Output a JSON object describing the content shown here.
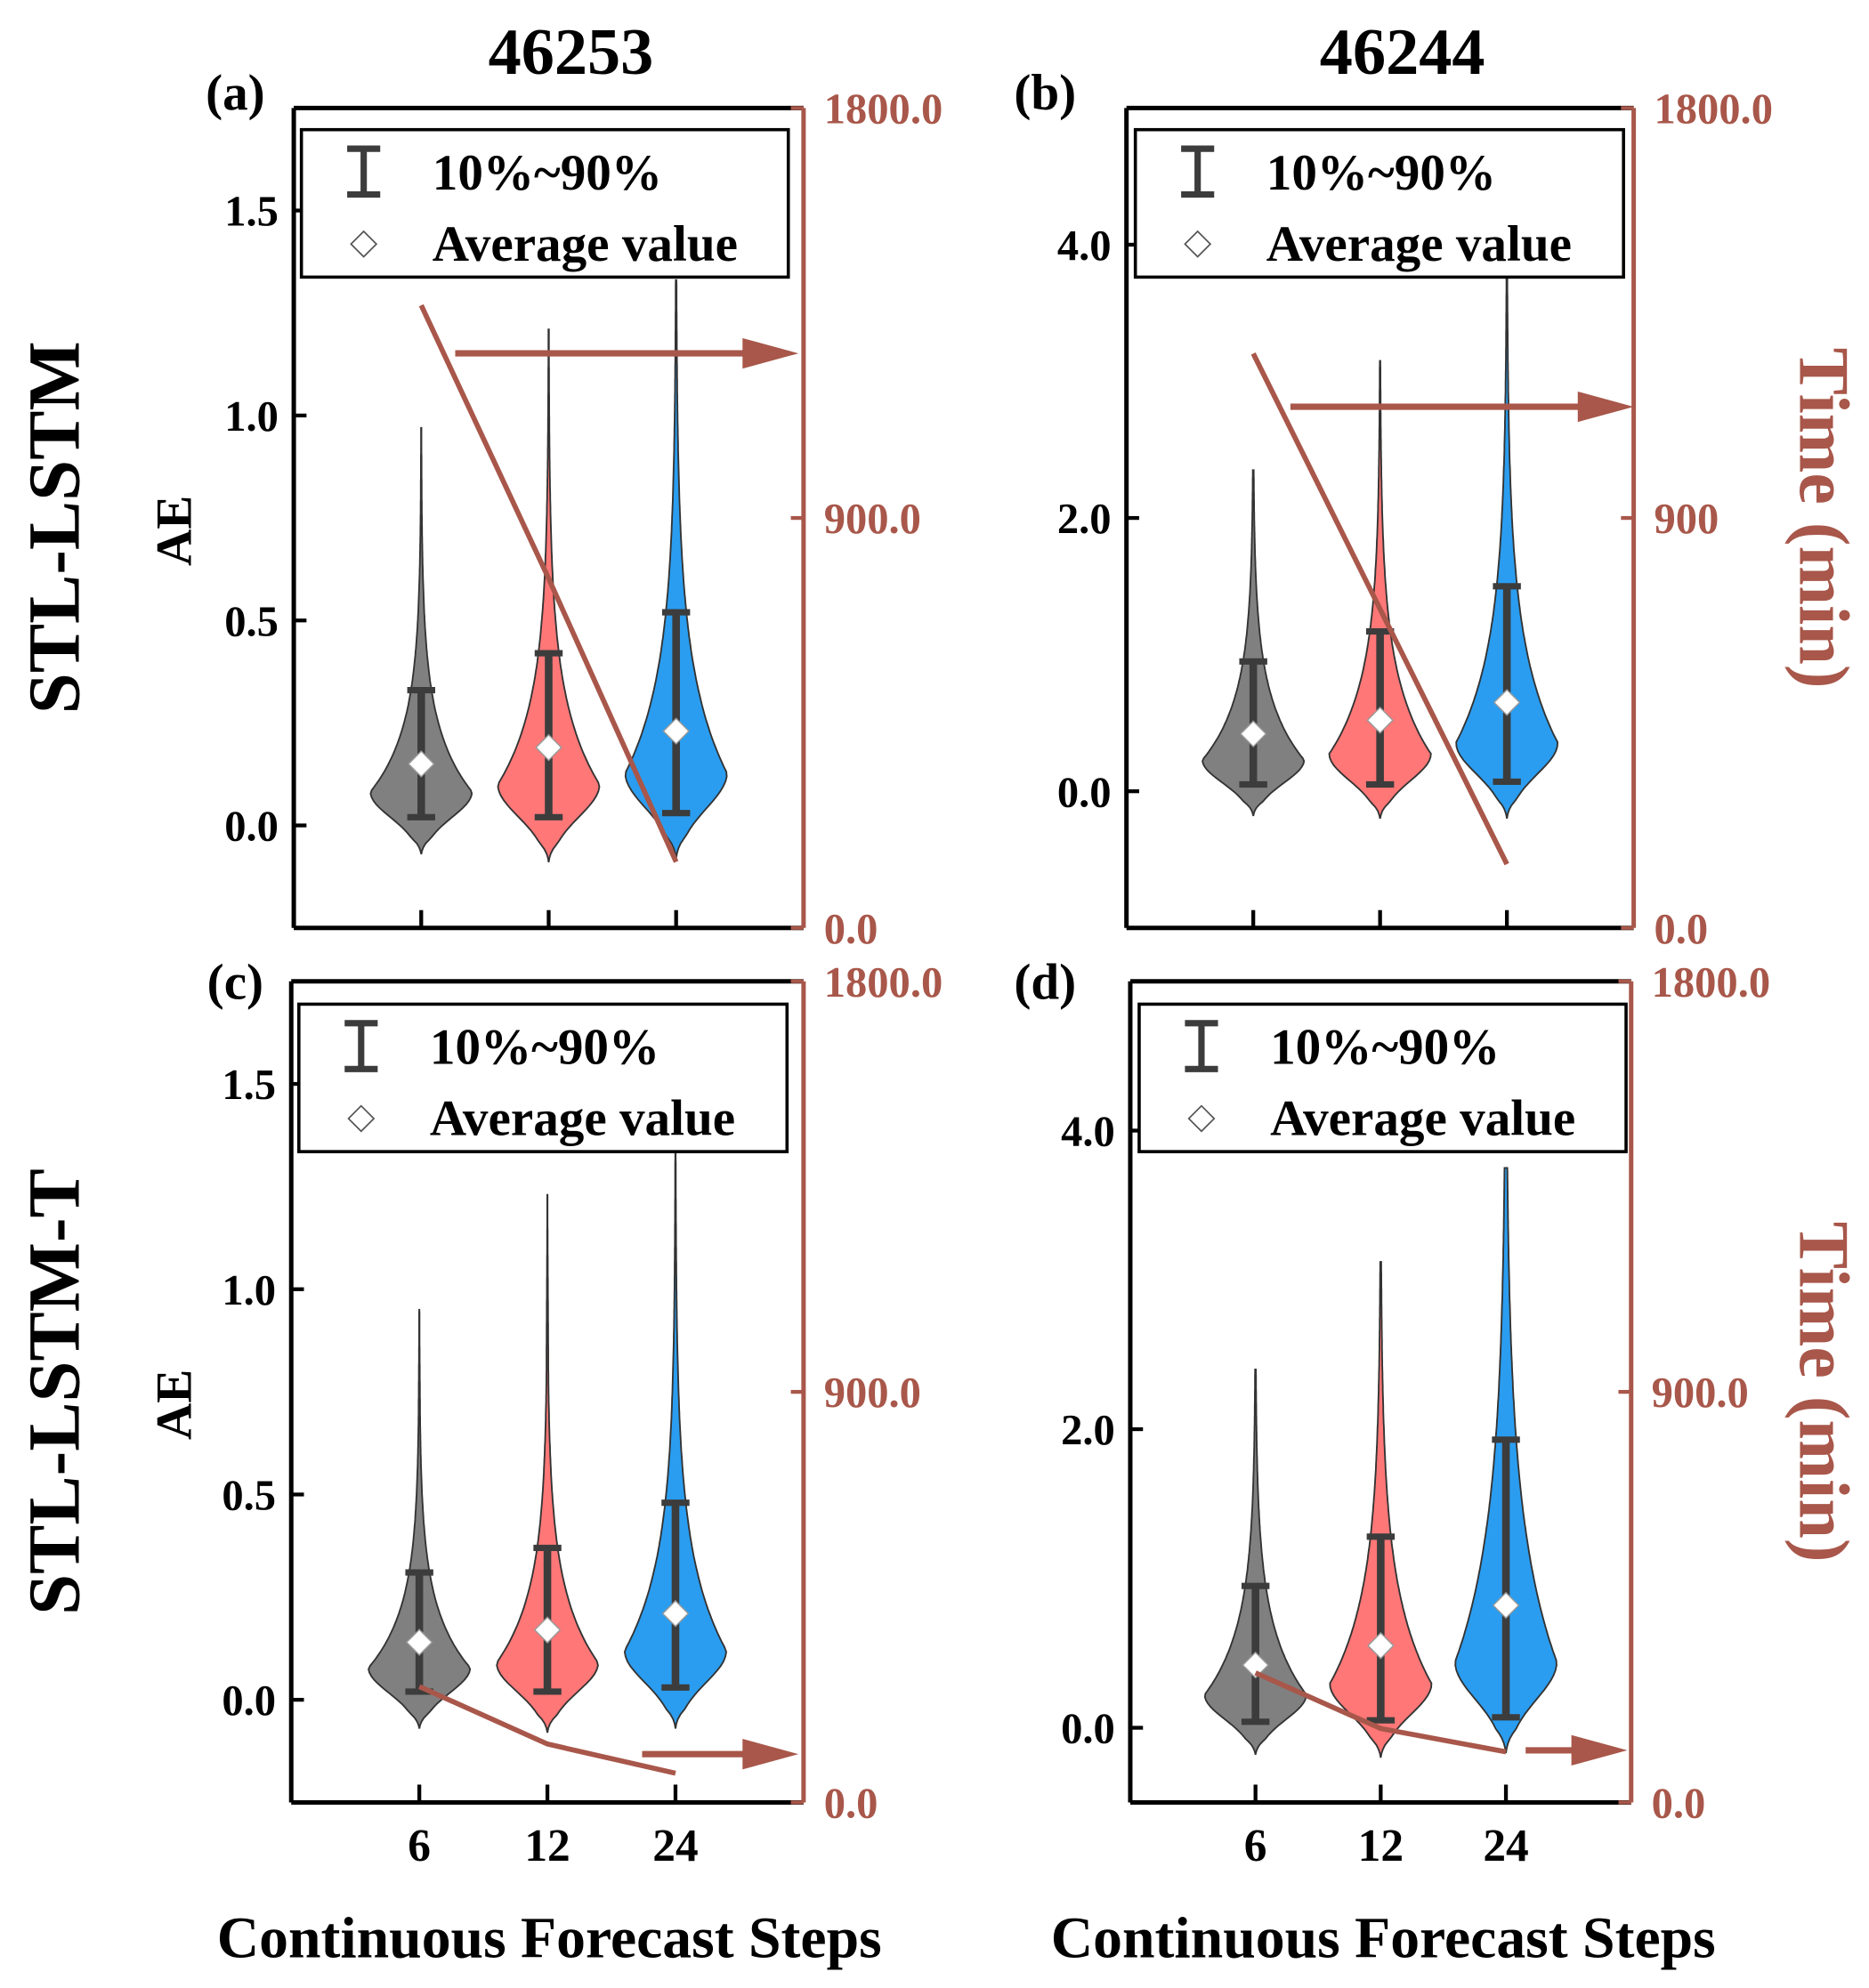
{
  "colors": {
    "gray": "#808080",
    "red": "#FF7777",
    "blue": "#2A9DF0",
    "time": "#A8574A",
    "bar": "#3C3C3C"
  },
  "columns": [
    {
      "title": "46253"
    },
    {
      "title": "46244"
    }
  ],
  "rows": [
    {
      "label": "STL-LSTM"
    },
    {
      "label": "STL-LSTM-T"
    }
  ],
  "legend": {
    "range_label": "10%~90%",
    "mean_label": "Average value"
  },
  "chart_data": [
    {
      "type": "violin",
      "panel": "(a)",
      "ylabel": "AE",
      "xlabel": "",
      "y2label": "",
      "ylim": [
        -0.25,
        1.75
      ],
      "yticks": [
        "0.0",
        "0.5",
        "1.0",
        "1.5"
      ],
      "ytick_values": [
        0,
        0.5,
        1.0,
        1.5
      ],
      "y2lim": [
        0,
        1800
      ],
      "y2ticks": [
        "0.0",
        "900.0",
        "1800.0"
      ],
      "y2tick_values": [
        0,
        900,
        1800
      ],
      "categories": [
        "6",
        "12",
        "24"
      ],
      "show_xtick_labels": false,
      "violins": [
        {
          "p10": 0.02,
          "p90": 0.33,
          "mean": 0.15,
          "min": -0.07,
          "max": 0.97
        },
        {
          "p10": 0.02,
          "p90": 0.42,
          "mean": 0.19,
          "min": -0.09,
          "max": 1.21
        },
        {
          "p10": 0.03,
          "p90": 0.52,
          "mean": 0.23,
          "min": -0.08,
          "max": 1.33
        }
      ],
      "time_series": {
        "name": "Time (min)",
        "values": [
          1367,
          767,
          145
        ]
      }
    },
    {
      "type": "violin",
      "panel": "(b)",
      "ylabel": "",
      "xlabel": "",
      "y2label": "Time (min)",
      "ylim": [
        -1,
        5
      ],
      "yticks": [
        "0.0",
        "2.0",
        "4.0"
      ],
      "ytick_values": [
        0,
        2,
        4
      ],
      "y2lim": [
        0,
        1800
      ],
      "y2ticks": [
        "0.0",
        "900",
        "1800.0"
      ],
      "y2tick_values": [
        0,
        900,
        1800
      ],
      "categories": [
        "6",
        "12",
        "24"
      ],
      "show_xtick_labels": false,
      "violins": [
        {
          "p10": 0.05,
          "p90": 0.95,
          "mean": 0.42,
          "min": -0.18,
          "max": 2.35
        },
        {
          "p10": 0.05,
          "p90": 1.17,
          "mean": 0.52,
          "min": -0.2,
          "max": 3.15
        },
        {
          "p10": 0.07,
          "p90": 1.5,
          "mean": 0.65,
          "min": -0.2,
          "max": 3.75
        }
      ],
      "time_series": {
        "name": "Time (min)",
        "values": [
          1261,
          700,
          140
        ]
      }
    },
    {
      "type": "violin",
      "panel": "(c)",
      "ylabel": "AE",
      "xlabel": "Continuous Forecast Steps",
      "y2label": "",
      "ylim": [
        -0.25,
        1.75
      ],
      "yticks": [
        "0.0",
        "0.5",
        "1.0",
        "1.5"
      ],
      "ytick_values": [
        0,
        0.5,
        1.0,
        1.5
      ],
      "y2lim": [
        0,
        1800
      ],
      "y2ticks": [
        "0.0",
        "900.0",
        "1800.0"
      ],
      "y2tick_values": [
        0,
        900,
        1800
      ],
      "categories": [
        "6",
        "12",
        "24"
      ],
      "show_xtick_labels": true,
      "violins": [
        {
          "p10": 0.02,
          "p90": 0.31,
          "mean": 0.14,
          "min": -0.07,
          "max": 0.95
        },
        {
          "p10": 0.02,
          "p90": 0.37,
          "mean": 0.17,
          "min": -0.08,
          "max": 1.23
        },
        {
          "p10": 0.03,
          "p90": 0.48,
          "mean": 0.21,
          "min": -0.07,
          "max": 1.33
        }
      ],
      "time_series": {
        "name": "Time (min)",
        "values": [
          254,
          128,
          64
        ]
      }
    },
    {
      "type": "violin",
      "panel": "(d)",
      "ylabel": "",
      "xlabel": "Continuous Forecast Steps",
      "y2label": "Time (min)",
      "ylim": [
        -0.5,
        5
      ],
      "yticks": [
        "0.0",
        "2.0",
        "4.0"
      ],
      "ytick_values": [
        0,
        2,
        4
      ],
      "y2lim": [
        0,
        1800
      ],
      "y2ticks": [
        "0.0",
        "900.0",
        "1800.0"
      ],
      "y2tick_values": [
        0,
        900,
        1800
      ],
      "categories": [
        "6",
        "12",
        "24"
      ],
      "show_xtick_labels": true,
      "violins": [
        {
          "p10": 0.04,
          "p90": 0.95,
          "mean": 0.42,
          "min": -0.18,
          "max": 2.4
        },
        {
          "p10": 0.05,
          "p90": 1.28,
          "mean": 0.55,
          "min": -0.2,
          "max": 3.12
        },
        {
          "p10": 0.07,
          "p90": 1.93,
          "mean": 0.82,
          "min": -0.17,
          "max": 3.75
        }
      ],
      "time_series": {
        "name": "Time (min)",
        "values": [
          284,
          162,
          111
        ]
      }
    }
  ]
}
